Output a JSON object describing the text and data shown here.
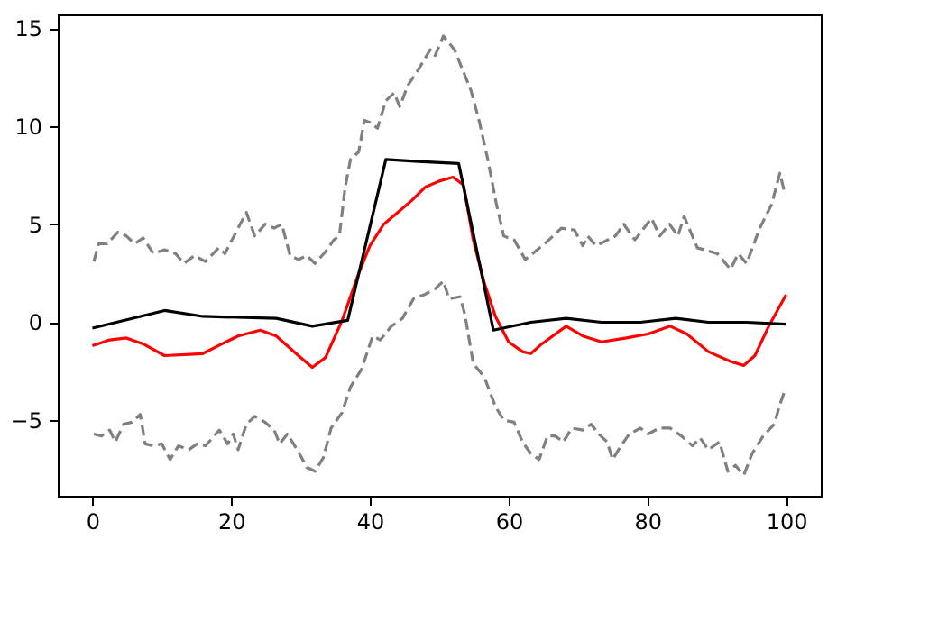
{
  "chart_data": {
    "type": "line",
    "xlim": [
      -5,
      105
    ],
    "ylim": [
      -8.85,
      15.7
    ],
    "xticks": [
      0,
      20,
      40,
      60,
      80,
      100
    ],
    "yticks": [
      -5,
      0,
      5,
      10,
      15
    ],
    "grid": false,
    "marker": "none",
    "series": [
      {
        "color": "#808080",
        "line_style": "dashed",
        "x": [
          0.2,
          0.9,
          2.1,
          3.7,
          4.9,
          6.1,
          7.3,
          8.8,
          10.4,
          12,
          13.2,
          14.7,
          16.3,
          18.2,
          19.1,
          21,
          22.2,
          23.4,
          24.9,
          26.2,
          27.3,
          28.5,
          29.7,
          30.9,
          32.1,
          33.6,
          34.8,
          35.6,
          36.4,
          37.2,
          38.4,
          39.2,
          40,
          41.1,
          42.3,
          43.5,
          44.3,
          45.5,
          47,
          48.7,
          49.4,
          50.6,
          52.2,
          54.6,
          55.8,
          57,
          58.2,
          59.3,
          60.8,
          62.4,
          65.2,
          67.6,
          69.5,
          70.7,
          71.4,
          72.6,
          75.4,
          76.6,
          78.2,
          80.6,
          81.8,
          83.2,
          84.4,
          85.3,
          87.2,
          90.1,
          92,
          93.1,
          94.3,
          96.2,
          97.9,
          99.1,
          99.8
        ],
        "values": [
          3.1,
          4.0,
          4.0,
          4.6,
          4.4,
          4.0,
          4.3,
          3.5,
          3.7,
          3.5,
          3.0,
          3.4,
          3.1,
          3.8,
          3.5,
          4.8,
          5.6,
          4.4,
          5.0,
          4.8,
          5.0,
          3.4,
          3.2,
          3.4,
          3.0,
          3.6,
          4.2,
          4.4,
          6.8,
          8.3,
          8.7,
          10.3,
          10.2,
          9.9,
          11.3,
          11.7,
          11.0,
          12.1,
          12.9,
          13.9,
          13.6,
          14.6,
          13.9,
          11.8,
          10.2,
          8.3,
          6.1,
          4.4,
          4.2,
          3.2,
          4.0,
          4.8,
          4.7,
          3.9,
          4.4,
          3.9,
          4.4,
          5.0,
          4.2,
          5.3,
          4.4,
          5.0,
          4.4,
          5.4,
          3.8,
          3.5,
          2.7,
          3.5,
          3.0,
          4.8,
          6.0,
          7.6,
          6.6
        ]
      },
      {
        "color": "#808080",
        "line_style": "dashed",
        "x": [
          0.2,
          1.3,
          2.5,
          3.3,
          4.5,
          5.7,
          6.9,
          7.6,
          8.8,
          10,
          11.2,
          12.4,
          13.9,
          15.1,
          16.3,
          18.3,
          19.5,
          20.3,
          21,
          22.2,
          23.4,
          24.9,
          26.2,
          27,
          28.1,
          29.7,
          30.9,
          32.1,
          33.3,
          34.4,
          36,
          37.2,
          38.8,
          40.4,
          41.5,
          43.1,
          44.7,
          46.3,
          47.8,
          49.4,
          50.6,
          51.4,
          53,
          53.7,
          54.9,
          56.5,
          58.1,
          59.3,
          60.8,
          62,
          63.2,
          64.4,
          65.6,
          66.7,
          67.9,
          69.1,
          70.7,
          71.9,
          73,
          74.2,
          75,
          76.2,
          77.4,
          79,
          80.1,
          81.7,
          83.3,
          84.9,
          86.5,
          87.6,
          88.8,
          90.4,
          91.6,
          92.7,
          93.9,
          95.1,
          96.7,
          98.3,
          99.1,
          99.8
        ],
        "values": [
          -5.7,
          -5.8,
          -5.5,
          -6.1,
          -5.2,
          -5.1,
          -4.7,
          -6.2,
          -6.3,
          -6.2,
          -7.0,
          -6.3,
          -6.5,
          -6.2,
          -6.3,
          -5.5,
          -6.2,
          -5.7,
          -6.5,
          -5.2,
          -4.8,
          -5.1,
          -5.5,
          -6.2,
          -5.7,
          -6.6,
          -7.4,
          -7.6,
          -6.9,
          -5.4,
          -4.6,
          -3.3,
          -2.4,
          -0.7,
          -0.9,
          -0.2,
          0.2,
          1.2,
          1.4,
          1.7,
          2.1,
          1.2,
          1.3,
          0.4,
          -2.1,
          -2.8,
          -4.3,
          -5.0,
          -5.1,
          -6.1,
          -6.7,
          -7.0,
          -5.8,
          -5.8,
          -6.1,
          -5.4,
          -5.5,
          -5.2,
          -5.7,
          -6.1,
          -7.0,
          -6.3,
          -5.7,
          -5.4,
          -5.7,
          -5.4,
          -5.4,
          -5.8,
          -6.3,
          -5.9,
          -6.5,
          -6.1,
          -7.6,
          -7.3,
          -7.8,
          -6.7,
          -5.8,
          -5.2,
          -4.2,
          -3.5
        ]
      },
      {
        "color": "#ff0000",
        "line_style": "solid",
        "x": [
          0,
          2.5,
          4.9,
          7.3,
          10.4,
          15.9,
          18.7,
          21,
          24.2,
          26.5,
          29.7,
          31.7,
          33.6,
          36,
          38.4,
          40,
          42,
          44,
          46,
          48,
          50,
          52,
          53.5,
          54.9,
          56.5,
          58.1,
          60,
          62,
          63.2,
          64.8,
          68.3,
          70.7,
          73.4,
          77,
          80.1,
          83.3,
          85.7,
          88.8,
          92,
          93.9,
          95.5,
          97.5,
          100
        ],
        "values": [
          -1.2,
          -0.9,
          -0.8,
          -1.1,
          -1.7,
          -1.6,
          -1.1,
          -0.7,
          -0.4,
          -0.7,
          -1.7,
          -2.3,
          -1.8,
          0.1,
          2.5,
          3.9,
          5.0,
          5.6,
          6.2,
          6.9,
          7.2,
          7.4,
          7.0,
          4.2,
          2.0,
          0.3,
          -1.0,
          -1.5,
          -1.6,
          -1.1,
          -0.2,
          -0.7,
          -1.0,
          -0.8,
          -0.6,
          -0.2,
          -0.6,
          -1.5,
          -2.0,
          -2.2,
          -1.7,
          -0.2,
          1.4
        ]
      },
      {
        "color": "#000000",
        "line_style": "solid",
        "x": [
          0,
          10.4,
          15.9,
          26.5,
          31.7,
          36.8,
          42.3,
          47,
          52.8,
          57.8,
          63.2,
          68.3,
          73.4,
          79,
          84.1,
          88.8,
          94.3,
          100
        ],
        "values": [
          -0.3,
          0.6,
          0.3,
          0.2,
          -0.2,
          0.1,
          8.3,
          8.2,
          8.1,
          -0.4,
          0.0,
          0.2,
          0.0,
          0.0,
          0.2,
          0.0,
          0.0,
          -0.1
        ]
      }
    ]
  }
}
